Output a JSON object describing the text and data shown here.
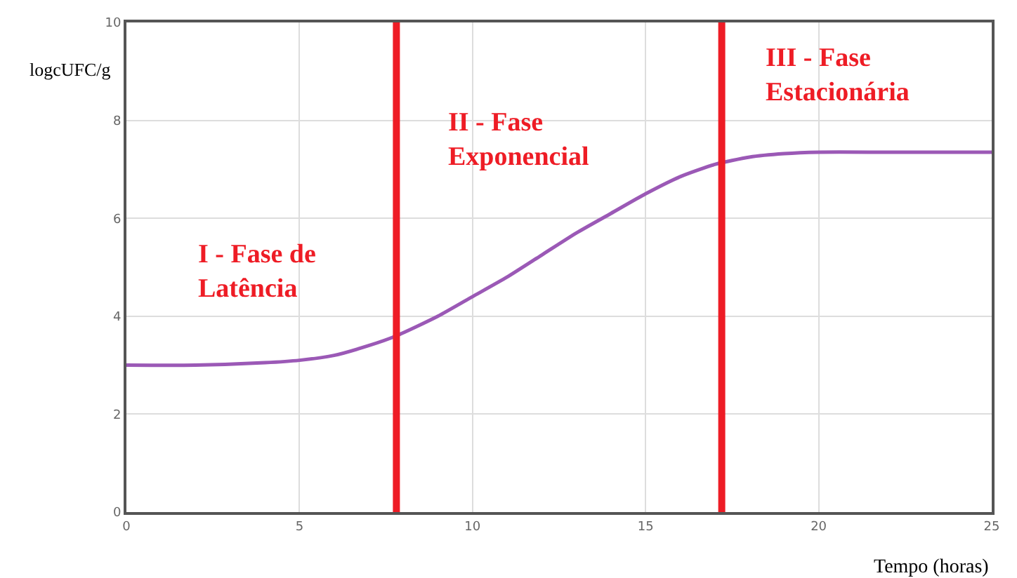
{
  "chart_data": {
    "type": "line",
    "xlabel": "Tempo (horas)",
    "ylabel": "logcUFC/g",
    "x": [
      0,
      2,
      4,
      5,
      6,
      7,
      7.8,
      9,
      10,
      11,
      12,
      13,
      14,
      15,
      16,
      17,
      18,
      19,
      20,
      22,
      25
    ],
    "series": [
      {
        "color": "#9b59b6",
        "values": [
          3.0,
          3.0,
          3.05,
          3.1,
          3.2,
          3.4,
          3.6,
          4.0,
          4.4,
          4.8,
          5.25,
          5.7,
          6.1,
          6.5,
          6.85,
          7.1,
          7.25,
          7.32,
          7.35,
          7.35,
          7.35
        ]
      }
    ],
    "xlim": [
      0,
      25
    ],
    "xticks": [
      0,
      5,
      10,
      15,
      20,
      25
    ],
    "ylim": [
      0,
      10
    ],
    "yticks": [
      0,
      2,
      4,
      6,
      8,
      10
    ],
    "ref_lines": [
      {
        "axis": "x",
        "value": 7.8,
        "color": "#ee1c25"
      },
      {
        "axis": "x",
        "value": 17.2,
        "color": "#ee1c25"
      }
    ],
    "annotations": [
      "I - Fase de\nLatência",
      "II - Fase\nExponencial",
      "III - Fase\nEstacionária"
    ],
    "grid": true,
    "marker": "none",
    "line_style": "solid"
  }
}
